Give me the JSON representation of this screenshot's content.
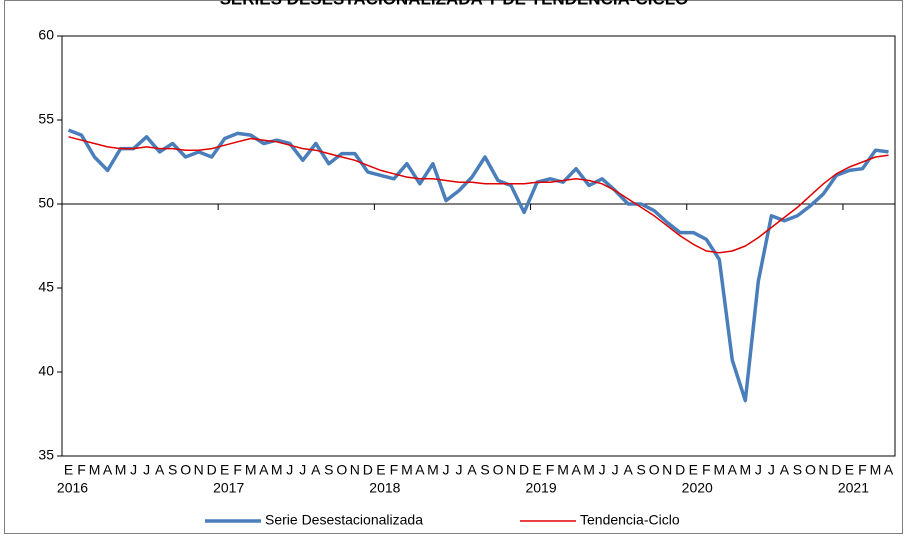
{
  "chart_data": {
    "type": "line",
    "title": "SERIES DESESTACIONALIZADA Y DE TENDENCIA-CICLO",
    "categories": [
      "E",
      "F",
      "M",
      "A",
      "M",
      "J",
      "J",
      "A",
      "S",
      "O",
      "N",
      "D",
      "E",
      "F",
      "M",
      "A",
      "M",
      "J",
      "J",
      "A",
      "S",
      "O",
      "N",
      "D",
      "E",
      "F",
      "M",
      "A",
      "M",
      "J",
      "J",
      "A",
      "S",
      "O",
      "N",
      "D",
      "E",
      "F",
      "M",
      "A",
      "M",
      "J",
      "J",
      "A",
      "S",
      "O",
      "N",
      "D",
      "E",
      "F",
      "M",
      "A",
      "M",
      "J",
      "J",
      "A",
      "S",
      "O",
      "N",
      "D",
      "E",
      "F",
      "M",
      "A"
    ],
    "years": [
      "2016",
      null,
      null,
      null,
      null,
      null,
      null,
      null,
      null,
      null,
      null,
      null,
      "2017",
      null,
      null,
      null,
      null,
      null,
      null,
      null,
      null,
      null,
      null,
      null,
      "2018",
      null,
      null,
      null,
      null,
      null,
      null,
      null,
      null,
      null,
      null,
      null,
      "2019",
      null,
      null,
      null,
      null,
      null,
      null,
      null,
      null,
      null,
      null,
      null,
      "2020",
      null,
      null,
      null,
      null,
      null,
      null,
      null,
      null,
      null,
      null,
      null,
      "2021",
      null,
      null,
      null
    ],
    "series": [
      {
        "name": "Serie Desestacionalizada",
        "color": "#4a7ebb",
        "values": [
          54.4,
          54.1,
          52.8,
          52.0,
          53.3,
          53.3,
          54.0,
          53.1,
          53.6,
          52.8,
          53.1,
          52.8,
          53.9,
          54.2,
          54.1,
          53.6,
          53.8,
          53.6,
          52.6,
          53.6,
          52.4,
          53.0,
          53.0,
          51.9,
          51.7,
          51.5,
          52.4,
          51.2,
          52.4,
          50.2,
          50.8,
          51.6,
          52.8,
          51.4,
          51.1,
          49.5,
          51.3,
          51.5,
          51.3,
          52.1,
          51.1,
          51.5,
          50.8,
          50.0,
          50.0,
          49.6,
          48.9,
          48.3,
          48.3,
          47.9,
          46.7,
          40.7,
          38.3,
          45.4,
          49.3,
          49.0,
          49.3,
          49.9,
          50.6,
          51.7,
          52.0,
          52.1,
          53.2,
          53.1
        ]
      },
      {
        "name": "Tendencia-Ciclo",
        "color": "#e00000",
        "values": [
          54.0,
          53.8,
          53.6,
          53.4,
          53.3,
          53.3,
          53.4,
          53.3,
          53.3,
          53.2,
          53.2,
          53.3,
          53.5,
          53.7,
          53.9,
          53.8,
          53.7,
          53.5,
          53.3,
          53.2,
          53.0,
          52.8,
          52.6,
          52.3,
          52.0,
          51.8,
          51.6,
          51.5,
          51.5,
          51.4,
          51.3,
          51.3,
          51.2,
          51.2,
          51.2,
          51.2,
          51.3,
          51.3,
          51.4,
          51.5,
          51.4,
          51.2,
          50.8,
          50.3,
          49.8,
          49.3,
          48.7,
          48.1,
          47.6,
          47.2,
          47.1,
          47.2,
          47.5,
          48.0,
          48.6,
          49.2,
          49.8,
          50.5,
          51.2,
          51.8,
          52.2,
          52.5,
          52.8,
          52.9
        ]
      }
    ],
    "ylim": [
      35,
      60
    ],
    "yticks": [
      35,
      40,
      45,
      50,
      55,
      60
    ],
    "axis_at": 50
  }
}
